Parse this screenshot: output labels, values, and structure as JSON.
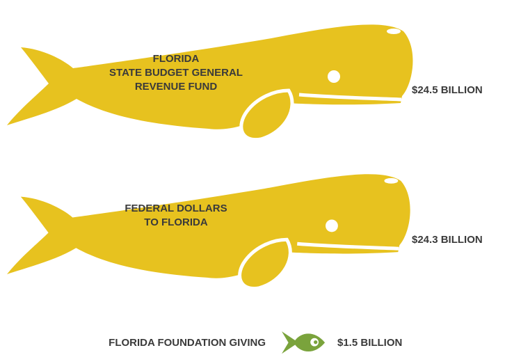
{
  "chart_data": {
    "type": "pictograph",
    "categories": [
      "FLORIDA\nSTATE BUDGET GENERAL\nREVENUE FUND",
      "FEDERAL DOLLARS\nTO FLORIDA",
      "FLORIDA FOUNDATION GIVING"
    ],
    "values": [
      24.5,
      24.3,
      1.5
    ],
    "value_labels": [
      "$24.5 BILLION",
      "$24.3 BILLION",
      "$1.5 BILLION"
    ],
    "icons": [
      "whale",
      "whale",
      "fish"
    ],
    "colors": [
      "#e7c21f",
      "#e7c21f",
      "#7aa33c"
    ]
  }
}
